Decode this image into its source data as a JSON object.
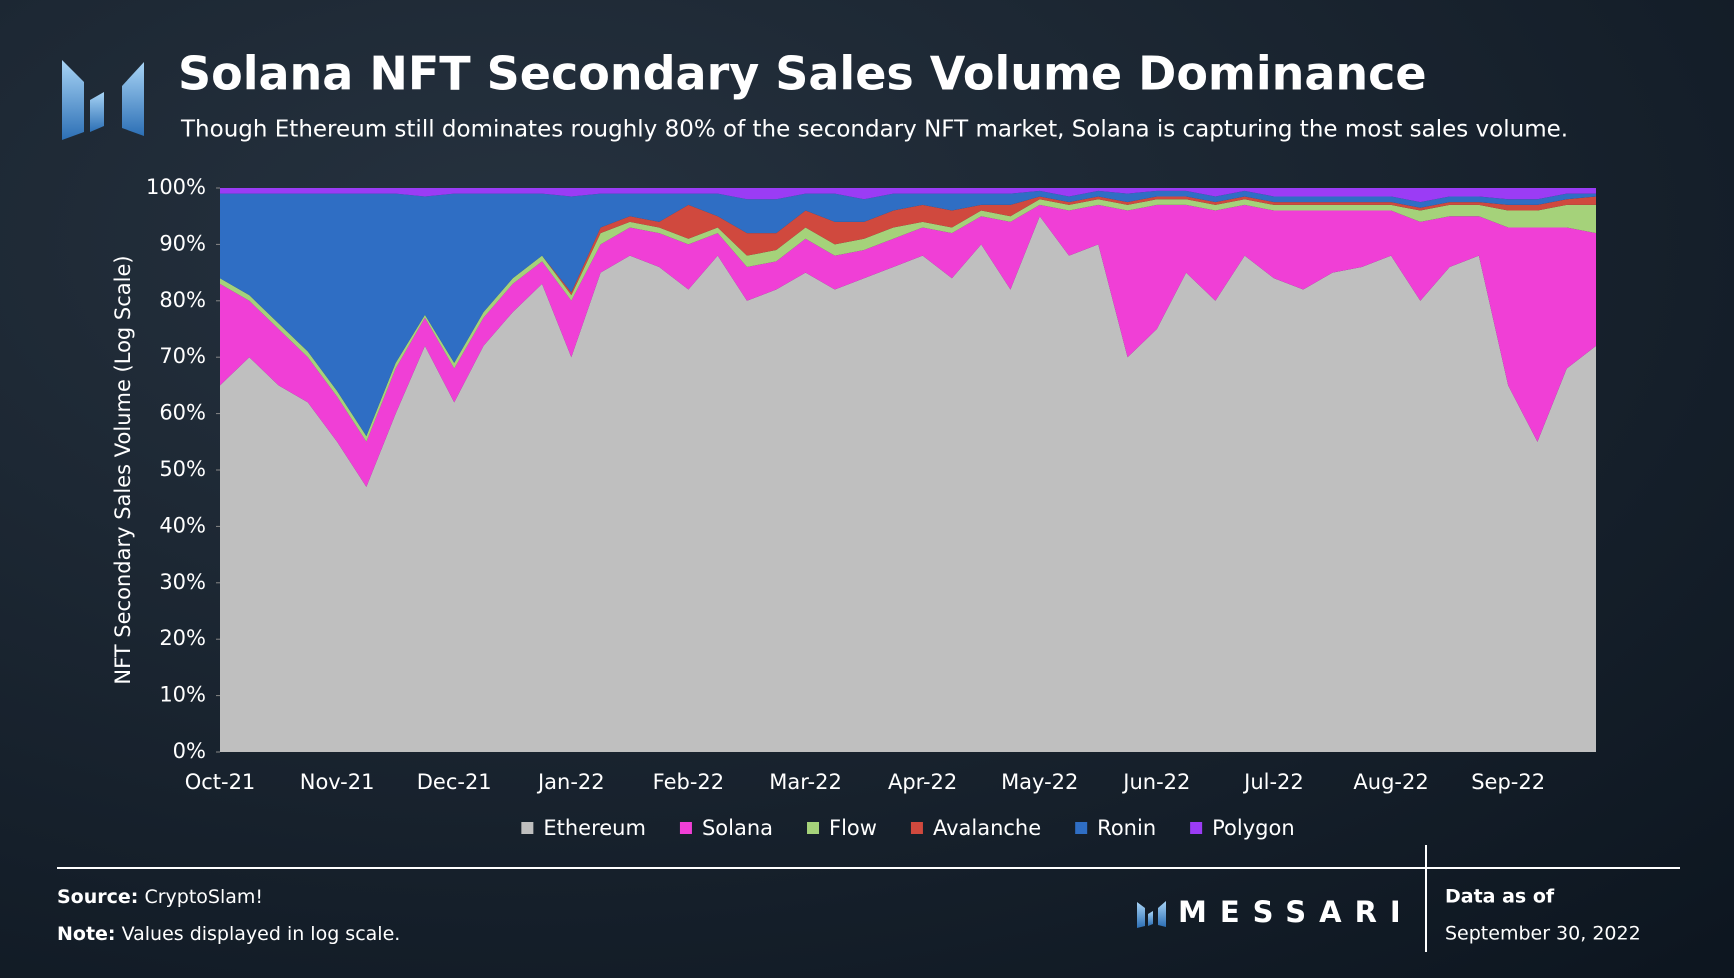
{
  "chart_data": {
    "type": "stacked_area",
    "title": "Solana NFT Secondary Sales Volume Dominance",
    "subtitle": "Though Ethereum still dominates roughly 80% of the secondary NFT market, Solana is capturing the most sales volume.",
    "y_label": "NFT Secondary Sales Volume (Log Scale)",
    "categories": [
      "Oct-21",
      null,
      null,
      null,
      "Nov-21",
      null,
      null,
      null,
      "Dec-21",
      null,
      null,
      null,
      "Jan-22",
      null,
      null,
      null,
      "Feb-22",
      null,
      null,
      null,
      "Mar-22",
      null,
      null,
      null,
      "Apr-22",
      null,
      null,
      null,
      "May-22",
      null,
      null,
      null,
      "Jun-22",
      null,
      null,
      null,
      "Jul-22",
      null,
      null,
      null,
      "Aug-22",
      null,
      null,
      null,
      "Sep-22",
      null,
      null,
      null
    ],
    "series": [
      {
        "name": "Ethereum",
        "color": "#bfbfbf",
        "values": [
          65,
          70,
          65,
          62,
          55,
          47,
          60,
          72,
          62,
          72,
          78,
          83,
          70,
          85,
          88,
          86,
          82,
          88,
          80,
          82,
          85,
          82,
          84,
          86,
          88,
          84,
          90,
          82,
          95,
          88,
          90,
          70,
          75,
          85,
          80,
          88,
          84,
          82,
          85,
          86,
          88,
          80,
          86,
          88,
          65,
          55,
          68,
          72
        ]
      },
      {
        "name": "Solana",
        "color": "#f03fd6",
        "values": [
          18,
          10,
          10,
          8,
          8,
          8,
          8,
          5,
          6,
          5,
          5,
          4,
          10,
          5,
          5,
          6,
          8,
          4,
          6,
          5,
          6,
          6,
          5,
          5,
          5,
          8,
          5,
          12,
          2,
          8,
          7,
          26,
          22,
          12,
          16,
          9,
          12,
          14,
          11,
          10,
          8,
          14,
          9,
          7,
          28,
          38,
          25,
          20
        ]
      },
      {
        "name": "Flow",
        "color": "#a5d27a",
        "values": [
          1,
          1,
          1,
          1,
          1,
          1,
          1,
          0.5,
          1,
          1,
          1,
          1,
          1,
          2,
          1,
          1,
          1,
          1,
          2,
          2,
          2,
          2,
          2,
          2,
          1,
          1,
          1,
          1,
          1,
          1,
          1,
          1,
          1,
          1,
          1,
          1,
          1,
          1,
          1,
          1,
          1,
          2,
          2,
          2,
          3,
          3,
          4,
          5
        ]
      },
      {
        "name": "Avalanche",
        "color": "#d0493e",
        "values": [
          0,
          0,
          0,
          0,
          0,
          0,
          0,
          0,
          0,
          0,
          0,
          0,
          0.5,
          1,
          1,
          1,
          6,
          2,
          4,
          3,
          3,
          4,
          3,
          3,
          3,
          3,
          1,
          2,
          0.5,
          0.5,
          0.5,
          0.5,
          0.5,
          0.5,
          0.5,
          0.5,
          0.5,
          0.5,
          0.5,
          0.5,
          0.5,
          0.5,
          0.5,
          0.5,
          1,
          1,
          1,
          1.5
        ]
      },
      {
        "name": "Ronin",
        "color": "#2f6ec4",
        "values": [
          15,
          18,
          23,
          28,
          35,
          43,
          30,
          21,
          30,
          21,
          15,
          11,
          17,
          6,
          4,
          5,
          2,
          4,
          6,
          6,
          3,
          5,
          4,
          3,
          2,
          3,
          2,
          2,
          1,
          1,
          1,
          1.5,
          1,
          1,
          1,
          1,
          1,
          1,
          1,
          1,
          1,
          1,
          1,
          1,
          1,
          1,
          1,
          0.5
        ]
      },
      {
        "name": "Polygon",
        "color": "#9b3cf5",
        "values": [
          1,
          1,
          1,
          1,
          1,
          1,
          1,
          1.5,
          1,
          1,
          1,
          1,
          1.5,
          1,
          1,
          1,
          1,
          1,
          2,
          2,
          1,
          1,
          2,
          1,
          1,
          1,
          1,
          1,
          0.5,
          1.5,
          0.5,
          1,
          0.5,
          0.5,
          1.5,
          0.5,
          1.5,
          1.5,
          1.5,
          1.5,
          1.5,
          2.5,
          1.5,
          1.5,
          2,
          2,
          1,
          1
        ]
      }
    ],
    "ylim": [
      0,
      100
    ],
    "yticks": [
      {
        "value": 0,
        "label": "0%"
      },
      {
        "value": 10,
        "label": "10%"
      },
      {
        "value": 20,
        "label": "20%"
      },
      {
        "value": 30,
        "label": "30%"
      },
      {
        "value": 40,
        "label": "40%"
      },
      {
        "value": 50,
        "label": "50%"
      },
      {
        "value": 60,
        "label": "60%"
      },
      {
        "value": 70,
        "label": "70%"
      },
      {
        "value": 80,
        "label": "80%"
      },
      {
        "value": 90,
        "label": "90%"
      },
      {
        "value": 100,
        "label": "100%"
      }
    ],
    "legend": "bottom"
  },
  "footer": {
    "source_label": "Source:",
    "source": "CryptoSlam!",
    "note_label": "Note:",
    "note": "Values displayed in log scale.",
    "brand": "MESSARI",
    "date_label": "Data as of",
    "date": "September 30, 2022"
  }
}
